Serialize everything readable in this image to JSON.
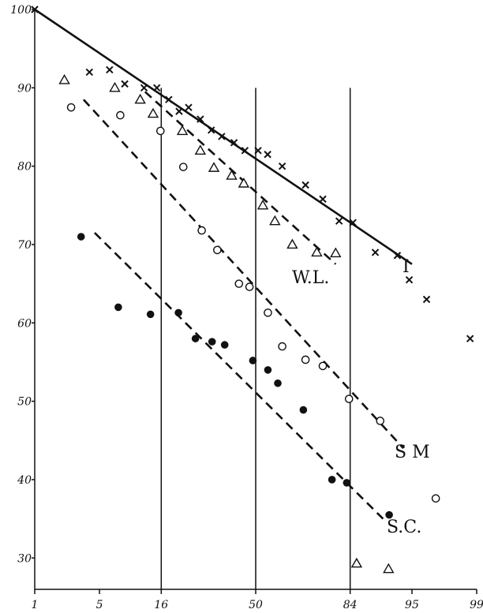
{
  "chart_data": {
    "type": "scatter",
    "x_scale": "probability",
    "x_ticks": [
      "1",
      "5",
      "16",
      "50",
      "84",
      "95",
      "99"
    ],
    "y_ticks": [
      "30",
      "40",
      "50",
      "60",
      "70",
      "80",
      "90",
      "100"
    ],
    "xlim": [
      1,
      99
    ],
    "ylim": [
      26,
      100
    ],
    "grid": false,
    "reference_lines_x": [
      16,
      50,
      84
    ],
    "series": [
      {
        "name": "I",
        "marker": "cross",
        "points": [
          [
            1,
            100
          ],
          [
            4,
            92
          ],
          [
            6.2,
            92.3
          ],
          [
            8.4,
            90.5
          ],
          [
            12,
            90
          ],
          [
            14.9,
            90
          ],
          [
            18,
            88.5
          ],
          [
            21,
            87
          ],
          [
            24,
            87.5
          ],
          [
            28,
            86
          ],
          [
            32,
            84.6
          ],
          [
            36,
            83.8
          ],
          [
            41,
            83
          ],
          [
            45.5,
            82
          ],
          [
            51,
            82
          ],
          [
            55,
            81.5
          ],
          [
            61,
            80
          ],
          [
            70,
            77.6
          ],
          [
            76,
            75.8
          ],
          [
            81,
            73
          ],
          [
            84.7,
            72.8
          ],
          [
            89.6,
            69
          ],
          [
            93.2,
            68.6
          ],
          [
            94.7,
            65.5
          ],
          [
            96.4,
            63
          ],
          [
            98.8,
            58
          ]
        ],
        "fit": {
          "from": [
            1,
            100
          ],
          "to": [
            95,
            67.5
          ],
          "style": "solid"
        }
      },
      {
        "name": "W.L.",
        "marker": "triangle",
        "points": [
          [
            2.2,
            91
          ],
          [
            6.9,
            90
          ],
          [
            11.2,
            88.5
          ],
          [
            14,
            86.7
          ],
          [
            22,
            84.5
          ],
          [
            28,
            82
          ],
          [
            33,
            79.8
          ],
          [
            40,
            78.8
          ],
          [
            45,
            77.8
          ],
          [
            53,
            75
          ],
          [
            58,
            73
          ],
          [
            65,
            70
          ],
          [
            74,
            69
          ],
          [
            80,
            68.9
          ],
          [
            85.6,
            29.3
          ],
          [
            91.9,
            28.6
          ]
        ],
        "fit": {
          "from": [
            12.2,
            89.5
          ],
          "to": [
            80,
            67.5
          ],
          "style": "dashed"
        }
      },
      {
        "name": "S M",
        "marker": "circle",
        "points": [
          [
            2.6,
            87.5
          ],
          [
            7.7,
            86.5
          ],
          [
            15.8,
            84.5
          ],
          [
            22.3,
            79.9
          ],
          [
            28.5,
            71.8
          ],
          [
            34.3,
            69.3
          ],
          [
            43,
            65
          ],
          [
            47.4,
            64.6
          ],
          [
            55.1,
            61.3
          ],
          [
            61,
            57
          ],
          [
            70,
            55.3
          ],
          [
            76,
            54.5
          ],
          [
            83.7,
            50.3
          ],
          [
            90.5,
            47.5
          ],
          [
            97.1,
            37.6
          ]
        ],
        "fit": {
          "from": [
            3.5,
            88.5
          ],
          "to": [
            94,
            44
          ],
          "style": "dashed"
        }
      },
      {
        "name": "S.C.",
        "marker": "dot",
        "points": [
          [
            3.3,
            71
          ],
          [
            7.4,
            62
          ],
          [
            13.4,
            61.1
          ],
          [
            20.8,
            61.3
          ],
          [
            26.3,
            58
          ],
          [
            32.3,
            57.6
          ],
          [
            37.2,
            57.2
          ],
          [
            48.8,
            55.2
          ],
          [
            55.1,
            54
          ],
          [
            59.2,
            52.3
          ],
          [
            69.2,
            48.9
          ],
          [
            78.9,
            40
          ],
          [
            83.1,
            39.6
          ],
          [
            92,
            35.5
          ]
        ],
        "fit": {
          "from": [
            4.5,
            71.5
          ],
          "to": [
            91,
            35
          ],
          "style": "dashed"
        }
      }
    ]
  }
}
